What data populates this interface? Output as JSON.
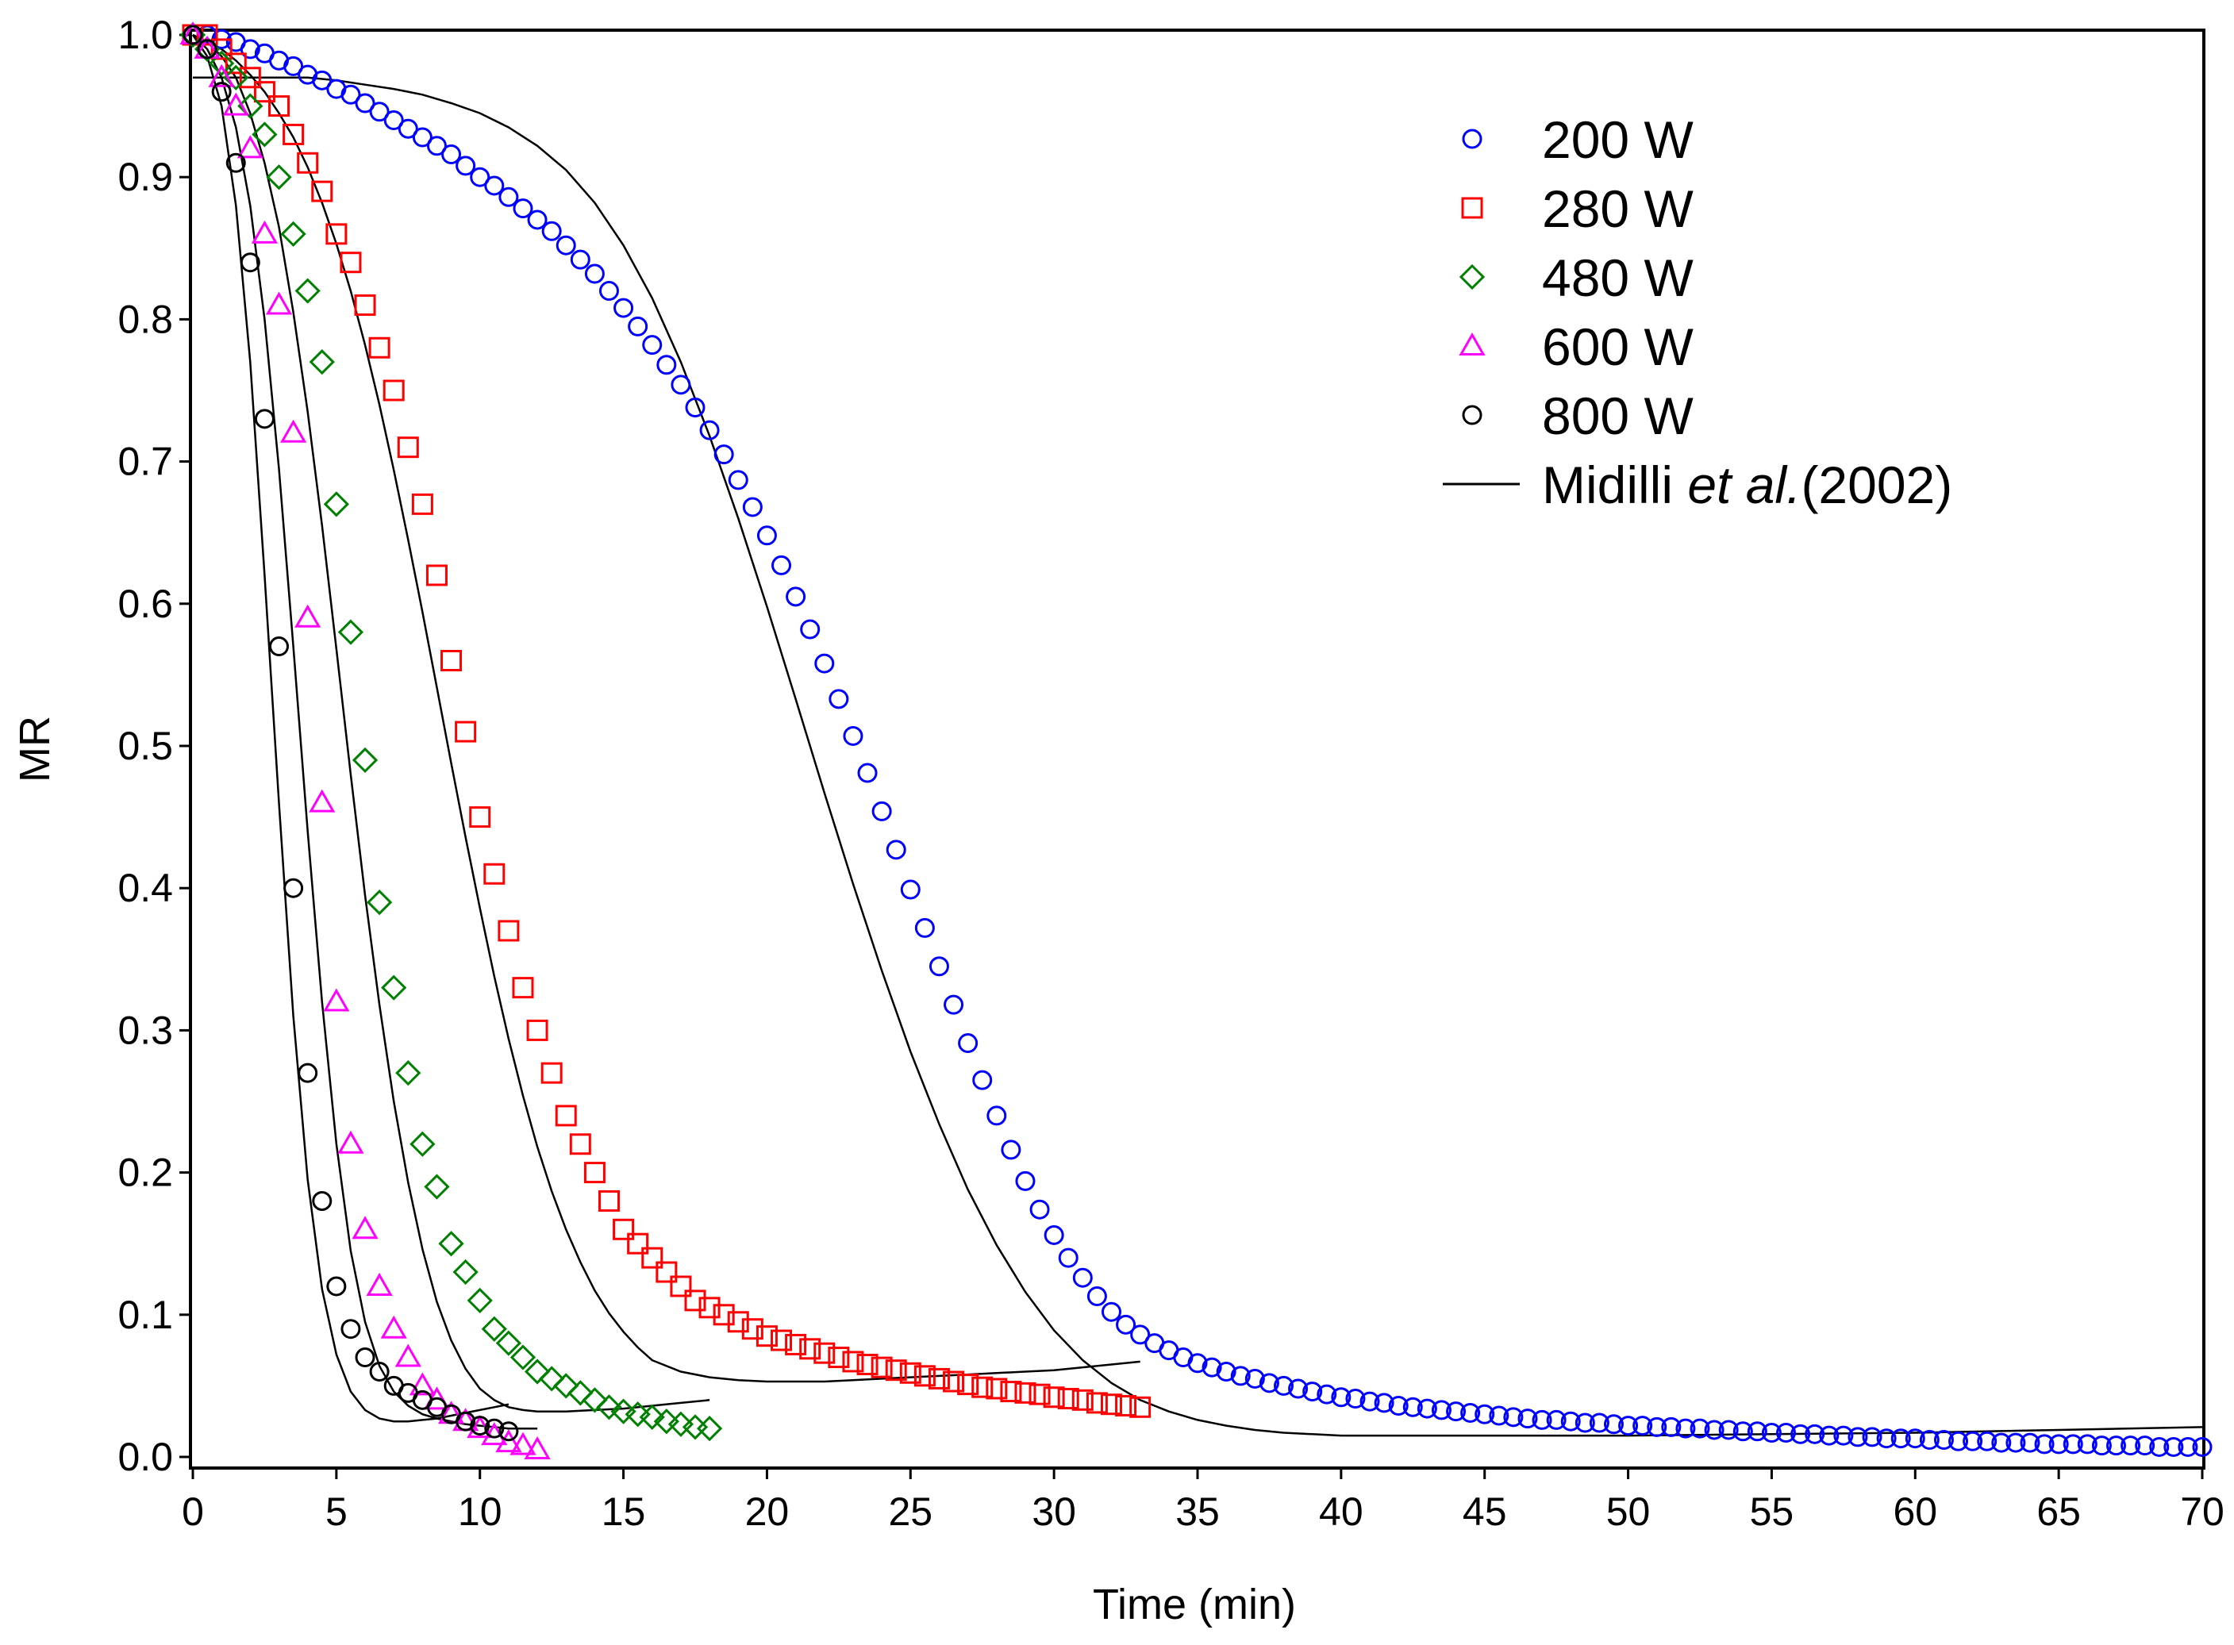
{
  "chart_data": {
    "type": "scatter",
    "title": "",
    "xlabel": "Time (min)",
    "ylabel": "MR",
    "xlim": [
      0,
      70
    ],
    "ylim": [
      0,
      1
    ],
    "xticks": [
      "0",
      "5",
      "10",
      "15",
      "20",
      "25",
      "30",
      "35",
      "40",
      "45",
      "50",
      "55",
      "60",
      "65",
      "70"
    ],
    "yticks": [
      "0.0",
      "0.1",
      "0.2",
      "0.3",
      "0.4",
      "0.5",
      "0.6",
      "0.7",
      "0.8",
      "0.9",
      "1.0"
    ],
    "grid": false,
    "legend_position": "top-right",
    "fit_label_prefix": "Midilli ",
    "fit_label_italic": "et al.",
    "fit_label_suffix": "(2002)",
    "series": [
      {
        "name": "200 W",
        "marker": "circle",
        "color": "#0000ff",
        "x": [
          0,
          0.5,
          1,
          1.5,
          2,
          2.5,
          3,
          3.5,
          4,
          4.5,
          5,
          5.5,
          6,
          6.5,
          7,
          7.5,
          8,
          8.5,
          9,
          9.5,
          10,
          10.5,
          11,
          11.5,
          12,
          12.5,
          13,
          13.5,
          14,
          14.5,
          15,
          15.5,
          16,
          16.5,
          17,
          17.5,
          18,
          18.5,
          19,
          19.5,
          20,
          20.5,
          21,
          21.5,
          22,
          22.5,
          23,
          23.5,
          24,
          24.5,
          25,
          25.5,
          26,
          26.5,
          27,
          27.5,
          28,
          28.5,
          29,
          29.5,
          30,
          30.5,
          31,
          31.5,
          32,
          32.5,
          33,
          33.5,
          34,
          34.5,
          35,
          35.5,
          36,
          36.5,
          37,
          37.5,
          38,
          38.5,
          39,
          39.5,
          40,
          40.5,
          41,
          41.5,
          42,
          42.5,
          43,
          43.5,
          44,
          44.5,
          45,
          45.5,
          46,
          46.5,
          47,
          47.5,
          48,
          48.5,
          49,
          49.5,
          50,
          50.5,
          51,
          51.5,
          52,
          52.5,
          53,
          53.5,
          54,
          54.5,
          55,
          55.5,
          56,
          56.5,
          57,
          57.5,
          58,
          58.5,
          59,
          59.5,
          60,
          60.5,
          61,
          61.5,
          62,
          62.5,
          63,
          63.5,
          64,
          64.5,
          65,
          65.5,
          66,
          66.5,
          67,
          67.5,
          68,
          68.5,
          69,
          69.5,
          70
        ],
        "y": [
          1,
          1,
          0.997,
          0.995,
          0.99,
          0.987,
          0.982,
          0.978,
          0.972,
          0.968,
          0.962,
          0.958,
          0.952,
          0.946,
          0.94,
          0.934,
          0.928,
          0.922,
          0.916,
          0.908,
          0.9,
          0.894,
          0.886,
          0.878,
          0.87,
          0.862,
          0.852,
          0.842,
          0.832,
          0.82,
          0.808,
          0.795,
          0.782,
          0.768,
          0.754,
          0.738,
          0.722,
          0.705,
          0.687,
          0.668,
          0.648,
          0.627,
          0.605,
          0.582,
          0.558,
          0.533,
          0.507,
          0.481,
          0.454,
          0.427,
          0.399,
          0.372,
          0.345,
          0.318,
          0.291,
          0.265,
          0.24,
          0.216,
          0.194,
          0.174,
          0.156,
          0.14,
          0.126,
          0.113,
          0.102,
          0.093,
          0.086,
          0.08,
          0.075,
          0.07,
          0.066,
          0.063,
          0.06,
          0.057,
          0.055,
          0.052,
          0.05,
          0.048,
          0.046,
          0.044,
          0.042,
          0.041,
          0.039,
          0.038,
          0.036,
          0.035,
          0.034,
          0.033,
          0.032,
          0.031,
          0.03,
          0.029,
          0.028,
          0.027,
          0.026,
          0.026,
          0.025,
          0.024,
          0.024,
          0.023,
          0.022,
          0.022,
          0.021,
          0.021,
          0.02,
          0.02,
          0.019,
          0.019,
          0.018,
          0.018,
          0.017,
          0.017,
          0.016,
          0.016,
          0.015,
          0.015,
          0.014,
          0.014,
          0.013,
          0.013,
          0.013,
          0.012,
          0.012,
          0.011,
          0.011,
          0.011,
          0.01,
          0.01,
          0.01,
          0.009,
          0.009,
          0.009,
          0.009,
          0.008,
          0.008,
          0.008,
          0.008,
          0.007,
          0.007,
          0.007,
          0.007
        ]
      },
      {
        "name": "280 W",
        "marker": "square",
        "color": "#ff0000",
        "x": [
          0,
          0.5,
          1,
          1.5,
          2,
          2.5,
          3,
          3.5,
          4,
          4.5,
          5,
          5.5,
          6,
          6.5,
          7,
          7.5,
          8,
          8.5,
          9,
          9.5,
          10,
          10.5,
          11,
          11.5,
          12,
          12.5,
          13,
          13.5,
          14,
          14.5,
          15,
          15.5,
          16,
          16.5,
          17,
          17.5,
          18,
          18.5,
          19,
          19.5,
          20,
          20.5,
          21,
          21.5,
          22,
          22.5,
          23,
          23.5,
          24,
          24.5,
          25,
          25.5,
          26,
          26.5,
          27,
          27.5,
          28,
          28.5,
          29,
          29.5,
          30,
          30.5,
          31,
          31.5,
          32,
          32.5,
          33
        ],
        "y": [
          1,
          1,
          0.99,
          0.98,
          0.97,
          0.96,
          0.95,
          0.93,
          0.91,
          0.89,
          0.86,
          0.84,
          0.81,
          0.78,
          0.75,
          0.71,
          0.67,
          0.62,
          0.56,
          0.51,
          0.45,
          0.41,
          0.37,
          0.33,
          0.3,
          0.27,
          0.24,
          0.22,
          0.2,
          0.18,
          0.16,
          0.15,
          0.14,
          0.13,
          0.12,
          0.11,
          0.105,
          0.1,
          0.095,
          0.09,
          0.085,
          0.082,
          0.079,
          0.076,
          0.073,
          0.07,
          0.067,
          0.065,
          0.063,
          0.061,
          0.059,
          0.057,
          0.055,
          0.053,
          0.051,
          0.049,
          0.048,
          0.046,
          0.045,
          0.044,
          0.042,
          0.041,
          0.04,
          0.038,
          0.037,
          0.036,
          0.035
        ]
      },
      {
        "name": "480 W",
        "marker": "diamond",
        "color": "#008000",
        "x": [
          0,
          0.5,
          1,
          1.5,
          2,
          2.5,
          3,
          3.5,
          4,
          4.5,
          5,
          5.5,
          6,
          6.5,
          7,
          7.5,
          8,
          8.5,
          9,
          9.5,
          10,
          10.5,
          11,
          11.5,
          12,
          12.5,
          13,
          13.5,
          14,
          14.5,
          15,
          15.5,
          16,
          16.5,
          17,
          17.5,
          18
        ],
        "y": [
          1,
          0.99,
          0.98,
          0.97,
          0.95,
          0.93,
          0.9,
          0.86,
          0.82,
          0.77,
          0.67,
          0.58,
          0.49,
          0.39,
          0.33,
          0.27,
          0.22,
          0.19,
          0.15,
          0.13,
          0.11,
          0.09,
          0.08,
          0.07,
          0.06,
          0.055,
          0.05,
          0.045,
          0.04,
          0.035,
          0.032,
          0.03,
          0.028,
          0.025,
          0.023,
          0.021,
          0.02
        ]
      },
      {
        "name": "600 W",
        "marker": "triangle",
        "color": "#ff00ff",
        "x": [
          0,
          0.5,
          1,
          1.5,
          2,
          2.5,
          3,
          3.5,
          4,
          4.5,
          5,
          5.5,
          6,
          6.5,
          7,
          7.5,
          8,
          8.5,
          9,
          9.5,
          10,
          10.5,
          11,
          11.5,
          12
        ],
        "y": [
          1,
          0.99,
          0.97,
          0.95,
          0.92,
          0.86,
          0.81,
          0.72,
          0.59,
          0.46,
          0.32,
          0.22,
          0.16,
          0.12,
          0.09,
          0.07,
          0.05,
          0.04,
          0.03,
          0.025,
          0.02,
          0.015,
          0.01,
          0.008,
          0.005
        ]
      },
      {
        "name": "800 W",
        "marker": "circle",
        "color": "#000000",
        "x": [
          0,
          0.5,
          1,
          1.5,
          2,
          2.5,
          3,
          3.5,
          4,
          4.5,
          5,
          5.5,
          6,
          6.5,
          7,
          7.5,
          8,
          8.5,
          9,
          9.5,
          10,
          10.5,
          11
        ],
        "y": [
          1,
          0.99,
          0.96,
          0.91,
          0.84,
          0.73,
          0.57,
          0.4,
          0.27,
          0.18,
          0.12,
          0.09,
          0.07,
          0.06,
          0.05,
          0.045,
          0.04,
          0.035,
          0.03,
          0.025,
          0.022,
          0.02,
          0.018
        ]
      }
    ],
    "fit_curves": [
      {
        "x": [
          0,
          1,
          2,
          3,
          4,
          5,
          6,
          7,
          8,
          9,
          10,
          11,
          12,
          13,
          14,
          15,
          16,
          17,
          18,
          19,
          20,
          21,
          22,
          23,
          24,
          25,
          26,
          27,
          28,
          29,
          30,
          31,
          32,
          33,
          34,
          35,
          36,
          37,
          38,
          39,
          40,
          42,
          45,
          50,
          55,
          60,
          65,
          70
        ],
        "y": [
          0.97,
          0.97,
          0.97,
          0.97,
          0.97,
          0.968,
          0.965,
          0.962,
          0.958,
          0.952,
          0.945,
          0.935,
          0.922,
          0.905,
          0.882,
          0.852,
          0.815,
          0.77,
          0.718,
          0.66,
          0.598,
          0.533,
          0.467,
          0.403,
          0.342,
          0.285,
          0.234,
          0.188,
          0.149,
          0.116,
          0.089,
          0.068,
          0.052,
          0.04,
          0.032,
          0.026,
          0.022,
          0.019,
          0.017,
          0.016,
          0.015,
          0.015,
          0.015,
          0.015,
          0.016,
          0.017,
          0.019,
          0.021
        ]
      },
      {
        "x": [
          0,
          0.5,
          1,
          1.5,
          2,
          2.5,
          3,
          3.5,
          4,
          4.5,
          5,
          5.5,
          6,
          6.5,
          7,
          7.5,
          8,
          8.5,
          9,
          9.5,
          10,
          10.5,
          11,
          11.5,
          12,
          12.5,
          13,
          13.5,
          14,
          14.5,
          15,
          15.5,
          16,
          17,
          18,
          19,
          20,
          21,
          22,
          23,
          24,
          25,
          26,
          27,
          28,
          29,
          30,
          31,
          32,
          33
        ],
        "y": [
          1,
          0.995,
          0.99,
          0.982,
          0.972,
          0.96,
          0.945,
          0.928,
          0.907,
          0.882,
          0.853,
          0.82,
          0.782,
          0.74,
          0.694,
          0.645,
          0.594,
          0.541,
          0.488,
          0.436,
          0.386,
          0.338,
          0.294,
          0.254,
          0.218,
          0.187,
          0.16,
          0.137,
          0.117,
          0.101,
          0.088,
          0.077,
          0.068,
          0.06,
          0.056,
          0.054,
          0.053,
          0.053,
          0.053,
          0.054,
          0.055,
          0.056,
          0.057,
          0.058,
          0.059,
          0.06,
          0.061,
          0.063,
          0.065,
          0.067
        ]
      },
      {
        "x": [
          0,
          0.5,
          1,
          1.5,
          2,
          2.5,
          3,
          3.5,
          4,
          4.5,
          5,
          5.5,
          6,
          6.5,
          7,
          7.5,
          8,
          8.5,
          9,
          9.5,
          10,
          10.5,
          11,
          11.5,
          12,
          13,
          14,
          15,
          16,
          17,
          18
        ],
        "y": [
          1,
          0.995,
          0.985,
          0.97,
          0.945,
          0.91,
          0.865,
          0.805,
          0.735,
          0.655,
          0.568,
          0.48,
          0.395,
          0.318,
          0.25,
          0.193,
          0.146,
          0.109,
          0.082,
          0.062,
          0.048,
          0.04,
          0.035,
          0.033,
          0.032,
          0.032,
          0.033,
          0.034,
          0.036,
          0.038,
          0.04
        ]
      },
      {
        "x": [
          0,
          0.5,
          1,
          1.5,
          2,
          2.5,
          3,
          3.5,
          4,
          4.5,
          5,
          5.5,
          6,
          6.5,
          7,
          7.5,
          8,
          8.5,
          9,
          9.5,
          10,
          10.5,
          11,
          11.5,
          12
        ],
        "y": [
          1,
          0.99,
          0.97,
          0.935,
          0.88,
          0.8,
          0.695,
          0.57,
          0.44,
          0.32,
          0.22,
          0.145,
          0.095,
          0.064,
          0.046,
          0.036,
          0.03,
          0.027,
          0.025,
          0.023,
          0.022,
          0.021,
          0.02,
          0.02,
          0.02
        ]
      },
      {
        "x": [
          0,
          0.5,
          1,
          1.5,
          2,
          2.5,
          3,
          3.5,
          4,
          4.5,
          5,
          5.5,
          6,
          6.5,
          7,
          7.5,
          8,
          8.5,
          9,
          9.5,
          10,
          10.5,
          11
        ],
        "y": [
          1,
          0.985,
          0.95,
          0.88,
          0.77,
          0.62,
          0.46,
          0.31,
          0.195,
          0.118,
          0.072,
          0.046,
          0.033,
          0.027,
          0.025,
          0.025,
          0.026,
          0.027,
          0.029,
          0.031,
          0.033,
          0.035,
          0.037
        ]
      }
    ]
  }
}
